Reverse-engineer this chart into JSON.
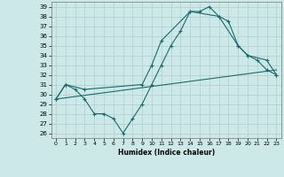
{
  "xlabel": "Humidex (Indice chaleur)",
  "xlim": [
    -0.5,
    23.5
  ],
  "ylim": [
    25.5,
    39.5
  ],
  "yticks": [
    26,
    27,
    28,
    29,
    30,
    31,
    32,
    33,
    34,
    35,
    36,
    37,
    38,
    39
  ],
  "xticks": [
    0,
    1,
    2,
    3,
    4,
    5,
    6,
    7,
    8,
    9,
    10,
    11,
    12,
    13,
    14,
    15,
    16,
    17,
    18,
    19,
    20,
    21,
    22,
    23
  ],
  "bg_color": "#cce8e8",
  "grid_color": "#b0cccc",
  "line_color": "#1a6b6b",
  "line1_x": [
    0,
    1,
    2,
    3,
    4,
    5,
    6,
    7,
    8,
    9,
    10,
    11,
    12,
    13,
    14,
    15,
    16,
    17,
    18,
    19,
    20,
    21,
    22,
    23
  ],
  "line1_y": [
    29.5,
    31.0,
    30.5,
    29.5,
    28.0,
    28.0,
    27.5,
    26.0,
    27.5,
    29.0,
    31.0,
    33.0,
    35.0,
    36.5,
    38.5,
    38.5,
    39.0,
    38.0,
    37.5,
    35.0,
    34.0,
    33.5,
    32.5,
    32.0
  ],
  "line2_x": [
    0,
    1,
    3,
    9,
    10,
    11,
    14,
    17,
    19,
    20,
    22,
    23
  ],
  "line2_y": [
    29.5,
    31.0,
    30.5,
    31.0,
    33.0,
    35.5,
    38.5,
    38.0,
    35.0,
    34.0,
    33.5,
    32.0
  ],
  "line3_x": [
    0,
    23
  ],
  "line3_y": [
    29.5,
    32.5
  ]
}
